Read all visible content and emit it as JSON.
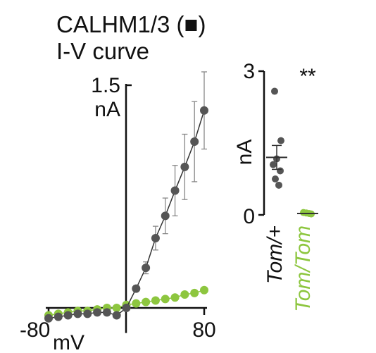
{
  "title": {
    "line1": "CALHM1/3 (■)",
    "line2": "I-V curve"
  },
  "colors": {
    "tom_plus": "#555555",
    "tom_tom": "#8dc63f",
    "axis": "#111111",
    "error": "#888888"
  },
  "chart_data": [
    {
      "type": "line",
      "x_unit_label": "mV",
      "y_unit_label": "nA",
      "x_tick_labels": [
        "-80",
        "80"
      ],
      "y_tick_label": "1.5",
      "xlim": [
        -80,
        80
      ],
      "ylim": [
        -0.15,
        1.5
      ],
      "x": [
        -80,
        -70,
        -60,
        -50,
        -40,
        -30,
        -20,
        -10,
        0,
        10,
        20,
        30,
        40,
        50,
        60,
        70,
        80
      ],
      "series": [
        {
          "color_key": "tom_plus",
          "values": [
            -0.07,
            -0.06,
            -0.05,
            -0.04,
            -0.04,
            -0.03,
            -0.03,
            -0.05,
            0.0,
            0.13,
            0.27,
            0.47,
            0.62,
            0.79,
            0.95,
            1.12,
            1.33
          ],
          "errors": [
            0,
            0,
            0,
            0,
            0,
            0,
            0,
            0,
            0,
            0.02,
            0.04,
            0.08,
            0.12,
            0.17,
            0.22,
            0.27,
            0.26
          ]
        },
        {
          "color_key": "tom_tom",
          "values": [
            -0.05,
            -0.04,
            -0.03,
            -0.02,
            -0.02,
            -0.01,
            0.0,
            0.0,
            0.02,
            0.03,
            0.04,
            0.05,
            0.06,
            0.07,
            0.09,
            0.1,
            0.12
          ]
        }
      ]
    },
    {
      "type": "scatter",
      "y_tick_labels": [
        "3",
        "0"
      ],
      "ylabel": "nA",
      "ylim": [
        0,
        3
      ],
      "significance": "**",
      "groups": [
        {
          "name": "Tom/+",
          "color_key": "tom_plus",
          "points": [
            2.58,
            1.55,
            1.17,
            1.05,
            0.92,
            0.75,
            0.62
          ],
          "mean": 1.2,
          "sem": 0.25
        },
        {
          "name": "Tom/Tom",
          "color_key": "tom_tom",
          "points": [
            0.05,
            0.04,
            0.03,
            0.02
          ],
          "mean": 0.03,
          "sem": 0.01
        }
      ]
    }
  ]
}
